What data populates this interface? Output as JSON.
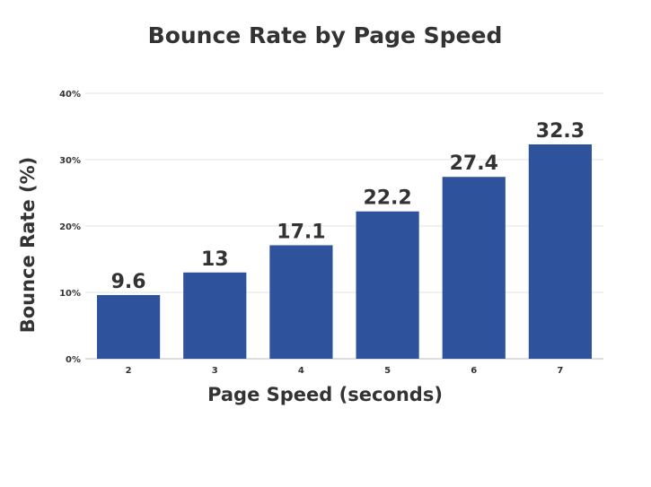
{
  "chart_data": {
    "type": "bar",
    "title": "Bounce Rate by Page Speed",
    "xlabel": "Page Speed (seconds)",
    "ylabel": "Bounce Rate (%)",
    "categories": [
      "2",
      "3",
      "4",
      "5",
      "6",
      "7"
    ],
    "values": [
      9.6,
      13,
      17.1,
      22.2,
      27.4,
      32.3
    ],
    "data_labels": [
      "9.6",
      "13",
      "17.1",
      "22.2",
      "27.4",
      "32.3"
    ],
    "yticks": [
      0,
      10,
      20,
      30,
      40
    ],
    "ytick_labels": [
      "0%",
      "10%",
      "20%",
      "30%",
      "40%"
    ],
    "ylim": [
      0,
      40
    ],
    "grid": true,
    "legend": "none",
    "bar_color": "#2f529c"
  }
}
